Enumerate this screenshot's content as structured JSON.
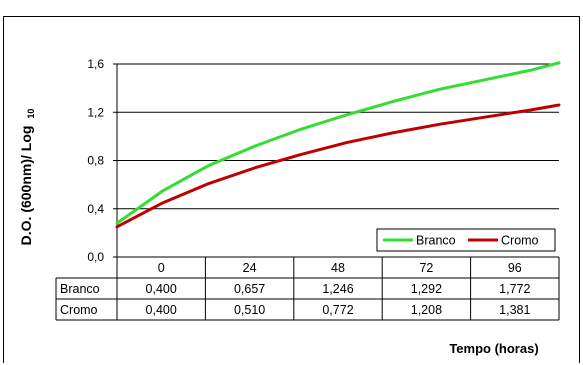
{
  "chart_data": {
    "type": "line",
    "title": "",
    "xlabel": "Tempo (horas)",
    "ylabel": "D.O. (600nm)/ Log",
    "ylabel_subscript": "10",
    "categories": [
      "0",
      "24",
      "48",
      "72",
      "96"
    ],
    "ylim": [
      0.0,
      1.6
    ],
    "yticks": [
      "0,0",
      "0,4",
      "0,8",
      "1,2",
      "1,6"
    ],
    "grid": "horizontal",
    "legend_position": "bottom-right",
    "series": [
      {
        "name": "Branco",
        "color": "#33dd33",
        "table_values": [
          "0,400",
          "0,657",
          "1,246",
          "1,292",
          "1,772"
        ],
        "trend": [
          [
            0,
            0.28
          ],
          [
            10,
            0.55
          ],
          [
            20,
            0.76
          ],
          [
            30,
            0.92
          ],
          [
            40,
            1.06
          ],
          [
            50,
            1.18
          ],
          [
            60,
            1.29
          ],
          [
            70,
            1.39
          ],
          [
            80,
            1.47
          ],
          [
            90,
            1.55
          ],
          [
            96,
            1.61
          ]
        ]
      },
      {
        "name": "Cromo",
        "color": "#c00000",
        "table_values": [
          "0,400",
          "0,510",
          "0,772",
          "1,208",
          "1,381"
        ],
        "trend": [
          [
            0,
            0.25
          ],
          [
            10,
            0.45
          ],
          [
            20,
            0.61
          ],
          [
            30,
            0.74
          ],
          [
            40,
            0.85
          ],
          [
            50,
            0.95
          ],
          [
            60,
            1.03
          ],
          [
            70,
            1.1
          ],
          [
            80,
            1.16
          ],
          [
            90,
            1.22
          ],
          [
            96,
            1.26
          ]
        ]
      }
    ]
  }
}
